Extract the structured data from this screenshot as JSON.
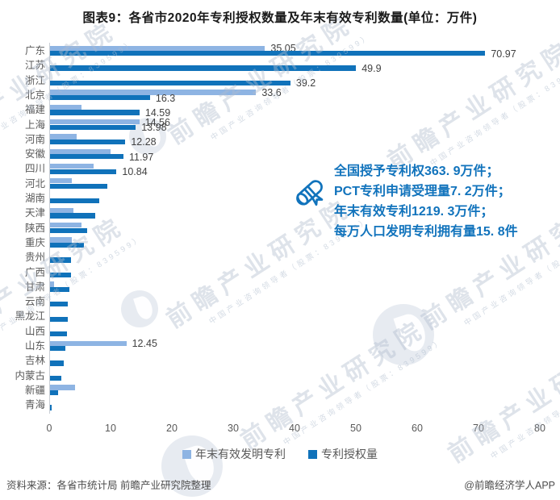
{
  "title": "图表9：各省市2020年专利授权数量及年末有效专利数量(单位：万件)",
  "chart_data": {
    "type": "bar",
    "orientation": "horizontal",
    "unit": "万件",
    "categories": [
      "广东",
      "江苏",
      "浙江",
      "北京",
      "福建",
      "上海",
      "河南",
      "安徽",
      "四川",
      "河北",
      "湖南",
      "天津",
      "陕西",
      "重庆",
      "贵州",
      "广西",
      "甘肃",
      "云南",
      "黑龙江",
      "山西",
      "山东",
      "吉林",
      "内蒙古",
      "新疆",
      "青海"
    ],
    "series": [
      {
        "name": "年末有效发明专利",
        "color": "#8EB4E3",
        "values": [
          35.05,
          null,
          null,
          33.6,
          5.1,
          14.56,
          4.4,
          9.9,
          7.1,
          3.5,
          null,
          3.8,
          5.1,
          3.5,
          null,
          null,
          0.7,
          null,
          null,
          null,
          12.45,
          null,
          null,
          4.1,
          null
        ],
        "labels": [
          "35.05",
          null,
          null,
          "33.6",
          null,
          "14.56",
          null,
          null,
          null,
          null,
          null,
          null,
          null,
          null,
          null,
          null,
          null,
          null,
          null,
          null,
          "12.45",
          null,
          null,
          null,
          null
        ]
      },
      {
        "name": "专利授权量",
        "color": "#1072BA",
        "values": [
          70.97,
          49.9,
          39.2,
          16.3,
          14.59,
          13.98,
          12.28,
          11.97,
          10.84,
          9.3,
          8.0,
          7.4,
          6.0,
          5.5,
          3.4,
          3.4,
          3.2,
          2.9,
          2.9,
          2.8,
          2.5,
          2.3,
          1.9,
          1.3,
          0.3
        ],
        "labels": [
          "70.97",
          "49.9",
          "39.2",
          "16.3",
          "14.59",
          "13.98",
          "12.28",
          "11.97",
          "10.84",
          null,
          null,
          null,
          null,
          null,
          null,
          null,
          null,
          null,
          null,
          null,
          null,
          null,
          null,
          null,
          null
        ]
      }
    ],
    "xlim": [
      0,
      80
    ],
    "x_ticks": [
      "0",
      "10",
      "20",
      "30",
      "40",
      "50",
      "60",
      "70",
      "80"
    ],
    "legend_position": "bottom",
    "grid": false
  },
  "annotation": {
    "lines": [
      "全国授予专利权363. 9万件；",
      "PCT专利申请受理量7. 2万件；",
      "年末有效专利1219. 3万件；",
      "每万人口发明专利拥有量15. 8件"
    ]
  },
  "watermark": {
    "text": "前瞻产业研究院",
    "subtext": "中国产业咨询领导者（股票：839599）"
  },
  "footer": {
    "source": "资料来源：各省市统计局 前瞻产业研究院整理",
    "credit": "@前瞻经济学人APP"
  }
}
